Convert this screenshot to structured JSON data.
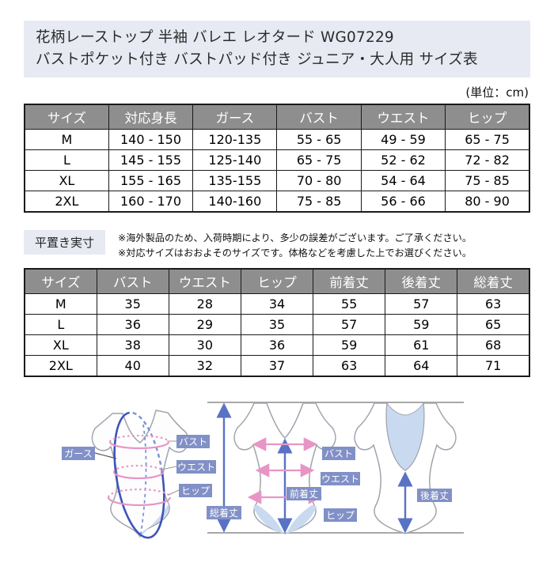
{
  "title": {
    "line1": "花柄レーストップ 半袖 バレエ レオタード WG07229",
    "line2": "バストポケット付き バストパッド付き ジュニア・大人用 サイズ表"
  },
  "unit_note": "(単位：cm)",
  "size_table": {
    "headers": [
      "サイズ",
      "対応身長",
      "ガース",
      "バスト",
      "ウエスト",
      "ヒップ"
    ],
    "rows": [
      [
        "M",
        "140 - 150",
        "120-135",
        "55 - 65",
        "49 - 59",
        "65 - 75"
      ],
      [
        "L",
        "145 - 155",
        "125-140",
        "65 - 75",
        "52 - 62",
        "72 - 82"
      ],
      [
        "XL",
        "155 - 165",
        "135-155",
        "70 - 80",
        "54 - 64",
        "75 - 85"
      ],
      [
        "2XL",
        "160 - 170",
        "140-160",
        "75 - 85",
        "56 - 66",
        "80 - 90"
      ]
    ]
  },
  "flat_section": {
    "label": "平置き実寸",
    "notes": [
      "※海外製品のため、入荷時期により、多少の誤差がございます。ご了承ください。",
      "※対応サイズはおおよそのサイズです。体格などを考慮した上でお選びください。"
    ]
  },
  "flat_table": {
    "headers": [
      "サイズ",
      "バスト",
      "ウエスト",
      "ヒップ",
      "前着丈",
      "後着丈",
      "総着丈"
    ],
    "rows": [
      [
        "M",
        "35",
        "28",
        "34",
        "55",
        "57",
        "63"
      ],
      [
        "L",
        "36",
        "29",
        "35",
        "57",
        "59",
        "65"
      ],
      [
        "XL",
        "38",
        "30",
        "36",
        "59",
        "61",
        "68"
      ],
      [
        "2XL",
        "40",
        "32",
        "37",
        "63",
        "64",
        "71"
      ]
    ]
  },
  "diagram": {
    "labels": {
      "garth": "ガース",
      "bust": "バスト",
      "waist": "ウエスト",
      "hip": "ヒップ",
      "front_length": "前着丈",
      "back_length": "後着丈",
      "total_length": "総着丈"
    },
    "colors": {
      "label_bg": "#8190c6",
      "pink": "#e895c5",
      "blue_arrow": "#5872c5",
      "garth_blue": "#3d55b8",
      "light_blue_fill": "#c9daf0",
      "outline_gray": "#a0a4ac",
      "baseline_gray": "#a8a8a8",
      "header_gray": "#8e8e8e",
      "panel_lavender": "#e7eaf3"
    }
  }
}
